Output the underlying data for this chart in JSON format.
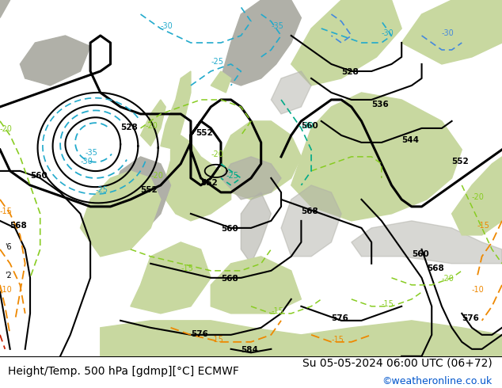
{
  "title_left": "Height/Temp. 500 hPa [gdmp][°C] ECMWF",
  "title_right": "Su 05-05-2024 06:00 UTC (06+72)",
  "credit": "©weatheronline.co.uk",
  "bg_ocean": "#d0d0d8",
  "bg_land_green": "#c8d8a0",
  "bg_land_gray": "#b0b0a8",
  "bottom_bar_color": "#ffffff",
  "credit_color": "#0055cc",
  "font_size_title": 10,
  "font_size_credit": 9,
  "fig_width": 6.34,
  "fig_height": 4.9,
  "dpi": 100
}
